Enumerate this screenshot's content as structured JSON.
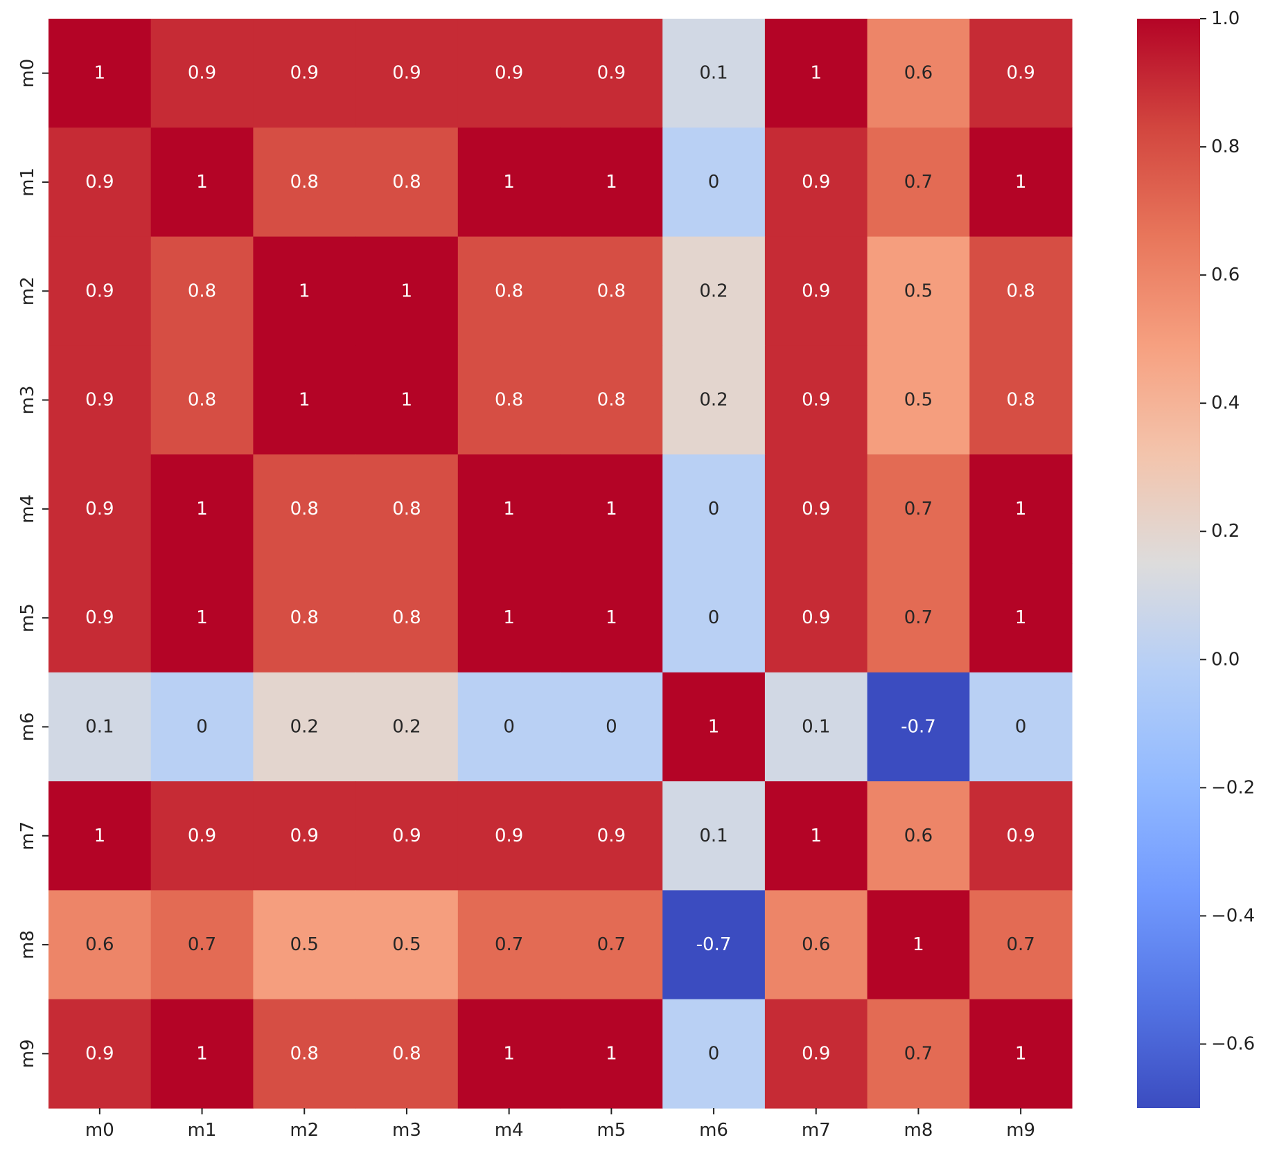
{
  "chart_data": {
    "type": "heatmap",
    "title": "",
    "xlabel": "",
    "ylabel": "",
    "x_categories": [
      "m0",
      "m1",
      "m2",
      "m3",
      "m4",
      "m5",
      "m6",
      "m7",
      "m8",
      "m9"
    ],
    "y_categories": [
      "m0",
      "m1",
      "m2",
      "m3",
      "m4",
      "m5",
      "m6",
      "m7",
      "m8",
      "m9"
    ],
    "values": [
      [
        1,
        0.9,
        0.9,
        0.9,
        0.9,
        0.9,
        0.1,
        1,
        0.6,
        0.9
      ],
      [
        0.9,
        1,
        0.8,
        0.8,
        1,
        1,
        0,
        0.9,
        0.7,
        1
      ],
      [
        0.9,
        0.8,
        1,
        1,
        0.8,
        0.8,
        0.2,
        0.9,
        0.5,
        0.8
      ],
      [
        0.9,
        0.8,
        1,
        1,
        0.8,
        0.8,
        0.2,
        0.9,
        0.5,
        0.8
      ],
      [
        0.9,
        1,
        0.8,
        0.8,
        1,
        1,
        0,
        0.9,
        0.7,
        1
      ],
      [
        0.9,
        1,
        0.8,
        0.8,
        1,
        1,
        0,
        0.9,
        0.7,
        1
      ],
      [
        0.1,
        0,
        0.2,
        0.2,
        0,
        0,
        1,
        0.1,
        -0.7,
        0
      ],
      [
        1,
        0.9,
        0.9,
        0.9,
        0.9,
        0.9,
        0.1,
        1,
        0.6,
        0.9
      ],
      [
        0.6,
        0.7,
        0.5,
        0.5,
        0.7,
        0.7,
        -0.7,
        0.6,
        1,
        0.7
      ],
      [
        0.9,
        1,
        0.8,
        0.8,
        1,
        1,
        0,
        0.9,
        0.7,
        1
      ]
    ],
    "value_labels": [
      [
        "1",
        "0.9",
        "0.9",
        "0.9",
        "0.9",
        "0.9",
        "0.1",
        "1",
        "0.6",
        "0.9"
      ],
      [
        "0.9",
        "1",
        "0.8",
        "0.8",
        "1",
        "1",
        "0",
        "0.9",
        "0.7",
        "1"
      ],
      [
        "0.9",
        "0.8",
        "1",
        "1",
        "0.8",
        "0.8",
        "0.2",
        "0.9",
        "0.5",
        "0.8"
      ],
      [
        "0.9",
        "0.8",
        "1",
        "1",
        "0.8",
        "0.8",
        "0.2",
        "0.9",
        "0.5",
        "0.8"
      ],
      [
        "0.9",
        "1",
        "0.8",
        "0.8",
        "1",
        "1",
        "0",
        "0.9",
        "0.7",
        "1"
      ],
      [
        "0.9",
        "1",
        "0.8",
        "0.8",
        "1",
        "1",
        "0",
        "0.9",
        "0.7",
        "1"
      ],
      [
        "0.1",
        "0",
        "0.2",
        "0.2",
        "0",
        "0",
        "1",
        "0.1",
        "-0.7",
        "0"
      ],
      [
        "1",
        "0.9",
        "0.9",
        "0.9",
        "0.9",
        "0.9",
        "0.1",
        "1",
        "0.6",
        "0.9"
      ],
      [
        "0.6",
        "0.7",
        "0.5",
        "0.5",
        "0.7",
        "0.7",
        "-0.7",
        "0.6",
        "1",
        "0.7"
      ],
      [
        "0.9",
        "1",
        "0.8",
        "0.8",
        "1",
        "1",
        "0",
        "0.9",
        "0.7",
        "1"
      ]
    ],
    "colorscale": "coolwarm",
    "vmin": -0.7,
    "vmax": 1.0,
    "colorbar_ticks": [
      1.0,
      0.8,
      0.6,
      0.4,
      0.2,
      0.0,
      -0.2,
      -0.4,
      -0.6
    ],
    "colorbar_tick_labels": [
      "1.0",
      "0.8",
      "0.6",
      "0.4",
      "0.2",
      "0.0",
      "−0.2",
      "−0.4",
      "−0.6"
    ],
    "grid": false,
    "legend": "colorbar-right"
  }
}
